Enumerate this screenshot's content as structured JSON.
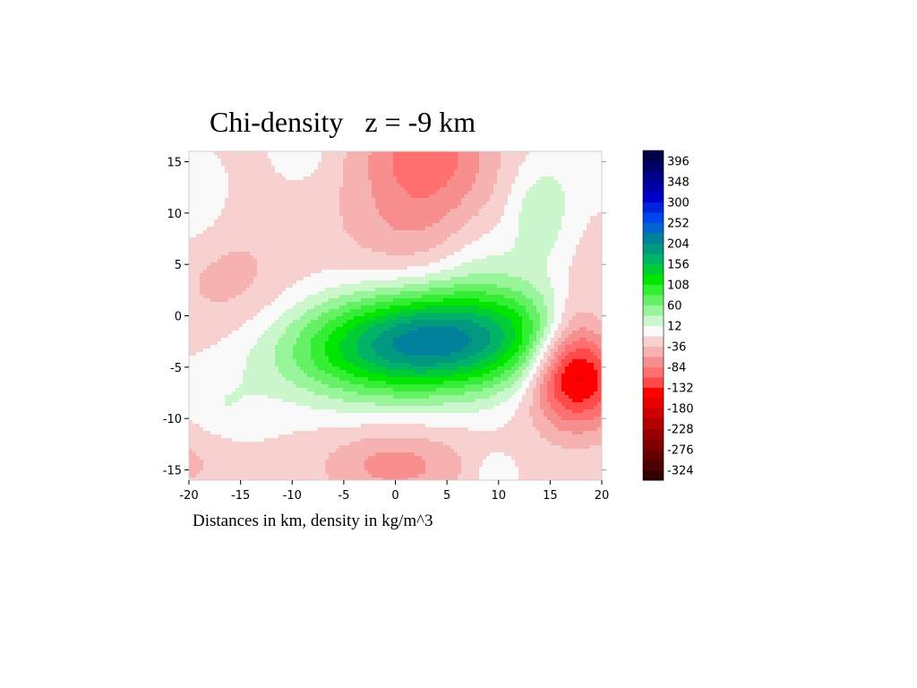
{
  "chart_data": {
    "type": "heatmap",
    "title": "Chi-density   z = -9 km",
    "caption": "Distances in km, density in kg/m^3",
    "x_range": [
      -20,
      20
    ],
    "y_range": [
      -16,
      16
    ],
    "x_ticks": [
      -20,
      -15,
      -10,
      -5,
      0,
      5,
      10,
      15,
      20
    ],
    "y_ticks": [
      -15,
      -10,
      -5,
      0,
      5,
      10,
      15
    ],
    "colorbar": {
      "levels": [
        -348,
        -324,
        -300,
        -276,
        -252,
        -228,
        -204,
        -180,
        -156,
        -132,
        -108,
        -84,
        -60,
        -36,
        -12,
        12,
        36,
        60,
        84,
        108,
        132,
        156,
        180,
        204,
        228,
        252,
        276,
        300,
        324,
        348,
        372,
        396,
        420
      ],
      "labeled_values": [
        396,
        348,
        300,
        252,
        204,
        156,
        108,
        60,
        12,
        -36,
        -84,
        -132,
        -180,
        -228,
        -276,
        -324
      ],
      "colors": [
        "#330000",
        "#4d0000",
        "#660000",
        "#800000",
        "#990000",
        "#b30000",
        "#cc0000",
        "#e60000",
        "#ff0000",
        "#ff4a4a",
        "#ff6f6f",
        "#f78f8f",
        "#f6b1b1",
        "#f7d0d0",
        "#f9f9f9",
        "#ccf7cc",
        "#99f599",
        "#66f066",
        "#33ee33",
        "#00e600",
        "#00cc33",
        "#00b366",
        "#009980",
        "#00809a",
        "#0066cc",
        "#0044ee",
        "#0022dd",
        "#0000cc",
        "#0000aa",
        "#000088",
        "#000066",
        "#000044"
      ]
    },
    "anomalies": [
      {
        "x": 3.5,
        "y": -2.5,
        "value": 240,
        "sx": 9.0,
        "sy": 3.6,
        "rho": 0.15
      },
      {
        "x": 14.0,
        "y": 10.0,
        "value": 48,
        "sx": 2.2,
        "sy": 3.5,
        "rho": 0
      },
      {
        "x": 18.0,
        "y": -6.0,
        "value": -140,
        "sx": 3.2,
        "sy": 3.5,
        "rho": 0
      },
      {
        "x": 17.0,
        "y": -2.0,
        "value": -60,
        "sx": 2.5,
        "sy": 4.5,
        "rho": 0.3
      },
      {
        "x": 3.0,
        "y": 16.5,
        "value": -75,
        "sx": 4.5,
        "sy": 4.0,
        "rho": 0
      },
      {
        "x": 2.0,
        "y": 9.0,
        "value": -42,
        "sx": 5.5,
        "sy": 4.5,
        "rho": 0
      },
      {
        "x": -16.0,
        "y": 3.0,
        "value": -30,
        "sx": 4.5,
        "sy": 4.5,
        "rho": 0
      },
      {
        "x": -20.0,
        "y": -13.0,
        "value": -30,
        "sx": 3.5,
        "sy": 3.5,
        "rho": 0
      },
      {
        "x": 0.0,
        "y": -14.5,
        "value": -55,
        "sx": 5.0,
        "sy": 2.5,
        "rho": 0
      },
      {
        "x": -17.5,
        "y": -9.5,
        "value": 32,
        "sx": 3.0,
        "sy": 2.5,
        "rho": 0
      },
      {
        "x": 9.5,
        "y": -15.5,
        "value": 28,
        "sx": 1.5,
        "sy": 1.5,
        "rho": 0
      },
      {
        "x": -9.0,
        "y": 16.0,
        "value": 22,
        "sx": 1.8,
        "sy": 2.0,
        "rho": 0
      },
      {
        "x": -19.5,
        "y": 10.5,
        "value": 24,
        "sx": 2.2,
        "sy": 3.0,
        "rho": 0
      },
      {
        "x": 8.0,
        "y": 6.0,
        "value": 25,
        "sx": 3.0,
        "sy": 3.0,
        "rho": 0
      },
      {
        "x": 19.5,
        "y": 14.0,
        "value": 20,
        "sx": 2.5,
        "sy": 2.0,
        "rho": 0
      }
    ],
    "background_value": -15,
    "legend_placement": "right"
  }
}
